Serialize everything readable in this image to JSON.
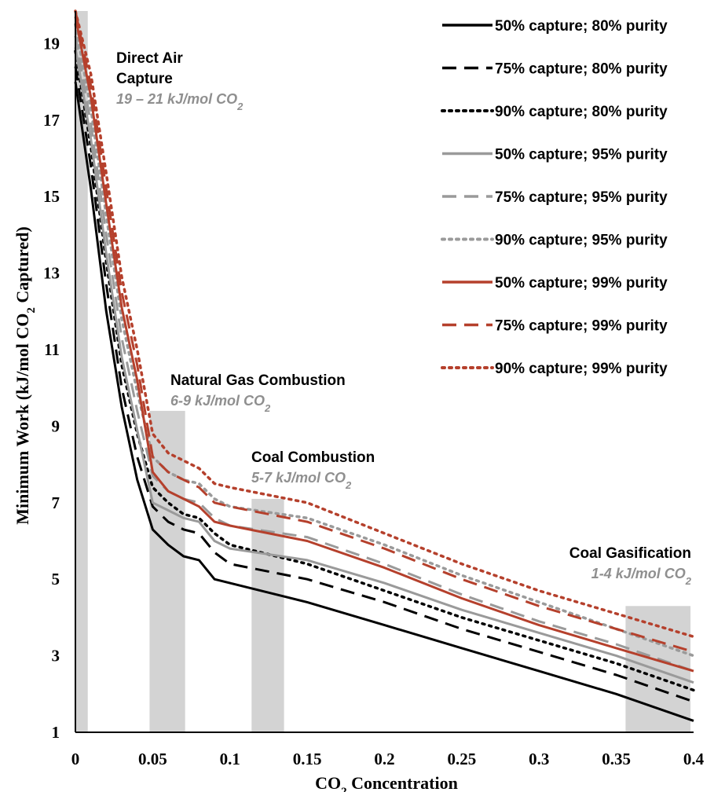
{
  "chart_data": {
    "type": "line",
    "title": "",
    "xlabel": "CO",
    "xlabel_sub": "2",
    "xlabel_tail": " Concentration",
    "ylabel": "Minimum Work (kJ/mol CO",
    "ylabel_sub": "2",
    "ylabel_tail": " Captured)",
    "xlim": [
      0,
      0.4
    ],
    "ylim": [
      1,
      20
    ],
    "xticks": [
      "0",
      "0.05",
      "0.1",
      "0.15",
      "0.2",
      "0.25",
      "0.3",
      "0.35",
      "0.4"
    ],
    "yticks": [
      "1",
      "3",
      "5",
      "7",
      "9",
      "11",
      "13",
      "15",
      "17",
      "19"
    ],
    "legend_position": "top-right",
    "colors": {
      "black": "#000000",
      "gray": "#9a9a9a",
      "red": "#b5402c",
      "band": "#d3d3d3"
    },
    "series": [
      {
        "name": "50% capture; 80% purity",
        "color": "#000000",
        "dash": "solid",
        "x": [
          0,
          0.01,
          0.02,
          0.03,
          0.04,
          0.05,
          0.06,
          0.07,
          0.08,
          0.09,
          0.1,
          0.15,
          0.2,
          0.25,
          0.3,
          0.35,
          0.4
        ],
        "y": [
          18.0,
          15.2,
          12.0,
          9.5,
          7.6,
          6.3,
          5.9,
          5.6,
          5.5,
          5.0,
          4.9,
          4.4,
          3.8,
          3.2,
          2.6,
          2.0,
          1.3
        ]
      },
      {
        "name": "75% capture; 80% purity",
        "color": "#000000",
        "dash": "dash",
        "x": [
          0,
          0.01,
          0.02,
          0.03,
          0.04,
          0.05,
          0.06,
          0.07,
          0.08,
          0.09,
          0.1,
          0.15,
          0.2,
          0.25,
          0.3,
          0.35,
          0.4
        ],
        "y": [
          18.4,
          15.8,
          12.7,
          10.0,
          8.2,
          6.9,
          6.5,
          6.3,
          6.2,
          5.7,
          5.4,
          5.0,
          4.4,
          3.7,
          3.1,
          2.5,
          1.8
        ]
      },
      {
        "name": "90% capture; 80% purity",
        "color": "#000000",
        "dash": "dot",
        "x": [
          0,
          0.01,
          0.02,
          0.03,
          0.04,
          0.05,
          0.06,
          0.07,
          0.08,
          0.09,
          0.1,
          0.15,
          0.2,
          0.25,
          0.3,
          0.35,
          0.4
        ],
        "y": [
          18.8,
          16.3,
          13.3,
          10.6,
          8.8,
          7.4,
          7.0,
          6.7,
          6.6,
          6.2,
          5.9,
          5.4,
          4.7,
          4.0,
          3.4,
          2.8,
          2.1
        ]
      },
      {
        "name": "50% capture; 95% purity",
        "color": "#9a9a9a",
        "dash": "solid",
        "x": [
          0,
          0.01,
          0.02,
          0.03,
          0.04,
          0.05,
          0.06,
          0.07,
          0.08,
          0.09,
          0.1,
          0.15,
          0.2,
          0.25,
          0.3,
          0.35,
          0.4
        ],
        "y": [
          18.9,
          16.5,
          13.5,
          10.8,
          8.9,
          7.0,
          6.8,
          6.6,
          6.5,
          6.0,
          5.8,
          5.5,
          4.9,
          4.2,
          3.6,
          3.0,
          2.3
        ]
      },
      {
        "name": "75% capture; 95% purity",
        "color": "#9a9a9a",
        "dash": "dash",
        "x": [
          0,
          0.01,
          0.02,
          0.03,
          0.04,
          0.05,
          0.06,
          0.07,
          0.08,
          0.09,
          0.1,
          0.15,
          0.2,
          0.25,
          0.3,
          0.35,
          0.4
        ],
        "y": [
          19.2,
          16.9,
          14.0,
          11.3,
          9.4,
          7.7,
          7.3,
          7.1,
          7.0,
          6.6,
          6.4,
          6.1,
          5.4,
          4.6,
          3.9,
          3.3,
          2.6
        ]
      },
      {
        "name": "90% capture; 95% purity",
        "color": "#9a9a9a",
        "dash": "dot",
        "x": [
          0,
          0.01,
          0.02,
          0.03,
          0.04,
          0.05,
          0.06,
          0.07,
          0.08,
          0.09,
          0.1,
          0.15,
          0.2,
          0.25,
          0.3,
          0.35,
          0.4
        ],
        "y": [
          19.5,
          17.3,
          14.5,
          11.8,
          9.9,
          8.2,
          7.8,
          7.6,
          7.5,
          7.1,
          6.9,
          6.6,
          5.9,
          5.1,
          4.4,
          3.7,
          3.0
        ]
      },
      {
        "name": "50% capture; 99% purity",
        "color": "#b5402c",
        "dash": "solid",
        "x": [
          0,
          0.01,
          0.02,
          0.03,
          0.04,
          0.05,
          0.06,
          0.07,
          0.08,
          0.09,
          0.1,
          0.15,
          0.2,
          0.25,
          0.3,
          0.35,
          0.4
        ],
        "y": [
          19.7,
          17.6,
          14.8,
          12.1,
          10.2,
          7.8,
          7.3,
          7.1,
          6.9,
          6.5,
          6.4,
          6.0,
          5.3,
          4.5,
          3.8,
          3.2,
          2.6
        ]
      },
      {
        "name": "75% capture; 99% purity",
        "color": "#b5402c",
        "dash": "dash",
        "x": [
          0,
          0.01,
          0.02,
          0.03,
          0.04,
          0.05,
          0.06,
          0.07,
          0.08,
          0.09,
          0.1,
          0.15,
          0.2,
          0.25,
          0.3,
          0.35,
          0.4
        ],
        "y": [
          19.9,
          17.9,
          15.2,
          12.5,
          10.6,
          8.2,
          7.8,
          7.6,
          7.4,
          7.0,
          6.9,
          6.5,
          5.8,
          5.0,
          4.3,
          3.7,
          3.1
        ]
      },
      {
        "name": "90% capture; 99% purity",
        "color": "#b5402c",
        "dash": "dot",
        "x": [
          0,
          0.01,
          0.02,
          0.03,
          0.04,
          0.05,
          0.06,
          0.07,
          0.08,
          0.09,
          0.1,
          0.15,
          0.2,
          0.25,
          0.3,
          0.35,
          0.4
        ],
        "y": [
          20.0,
          18.2,
          15.6,
          12.9,
          11.0,
          8.8,
          8.3,
          8.1,
          7.9,
          7.5,
          7.4,
          7.0,
          6.2,
          5.4,
          4.7,
          4.1,
          3.5
        ]
      }
    ],
    "regions": [
      {
        "name": "Direct Air",
        "name2": "Capture",
        "range_text": "19 – 21 kJ/mol CO",
        "range_sub": "2",
        "x0": 0.0004,
        "x1": 0.008,
        "ytop": 20
      },
      {
        "name": "Natural Gas Combustion",
        "name2": "",
        "range_text": "6-9 kJ/mol CO",
        "range_sub": "2",
        "x0": 0.048,
        "x1": 0.071,
        "ytop": 9.4
      },
      {
        "name": "Coal Combustion",
        "name2": "",
        "range_text": "5-7 kJ/mol CO",
        "range_sub": "2",
        "x0": 0.114,
        "x1": 0.135,
        "ytop": 7.1
      },
      {
        "name": "Coal Gasification",
        "name2": "",
        "range_text": "1-4 kJ/mol CO",
        "range_sub": "2",
        "x0": 0.356,
        "x1": 0.398,
        "ytop": 4.3
      }
    ]
  }
}
